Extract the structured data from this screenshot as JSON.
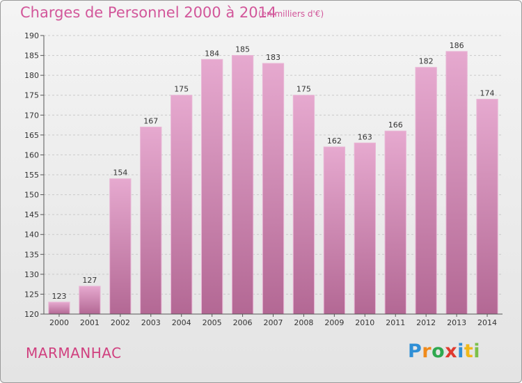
{
  "title": "Charges de Personnel 2000 à 2014",
  "subtitle": "(en milliers d'€)",
  "commune": "MARMANHAC",
  "logo": {
    "letters": [
      "P",
      "r",
      "o",
      "x",
      "i",
      "t",
      "i"
    ],
    "colors": [
      "#2f8fd6",
      "#f08a1a",
      "#2fa84f",
      "#e03a2f",
      "#2f8fd6",
      "#f0b81a",
      "#7cc04a"
    ]
  },
  "colors": {
    "bar": "#d98fbc",
    "bar_edge": "#e9b7d6",
    "text": "#333333",
    "accent": "#d2569a"
  },
  "chart_data": {
    "type": "bar",
    "categories": [
      "2000",
      "2001",
      "2002",
      "2003",
      "2004",
      "2005",
      "2006",
      "2007",
      "2008",
      "2009",
      "2010",
      "2011",
      "2012",
      "2013",
      "2014"
    ],
    "values": [
      123,
      127,
      154,
      167,
      175,
      184,
      185,
      183,
      175,
      162,
      163,
      166,
      182,
      186,
      174
    ],
    "ylim": [
      120,
      190
    ],
    "yticks": [
      120,
      125,
      130,
      135,
      140,
      145,
      150,
      155,
      160,
      165,
      170,
      175,
      180,
      185,
      190
    ],
    "grid": true
  }
}
